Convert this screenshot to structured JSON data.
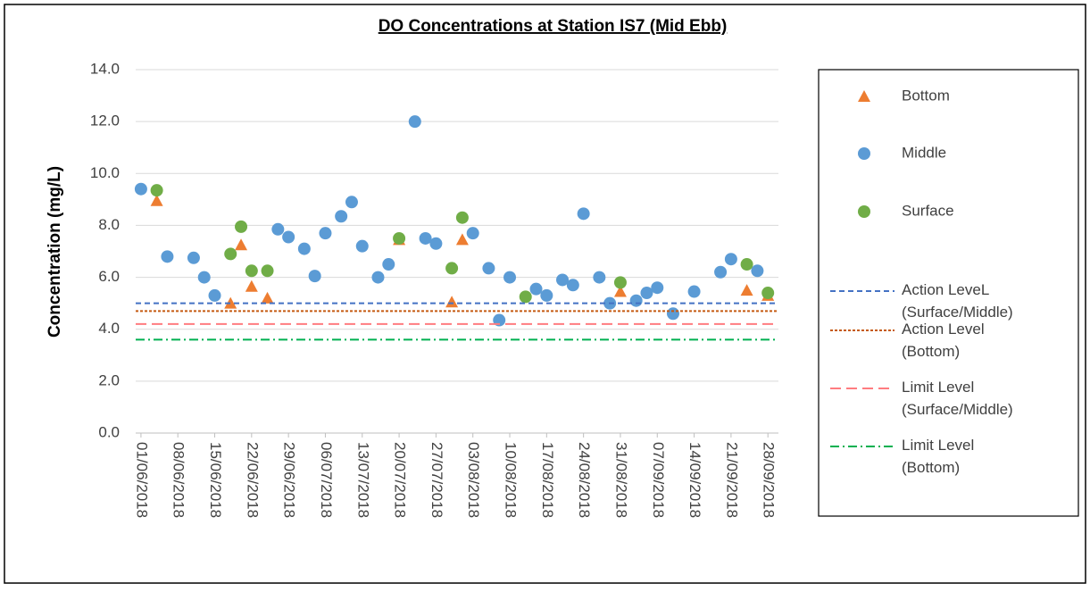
{
  "chart_data": {
    "type": "scatter",
    "title": "DO Concentrations at Station IS7 (Mid Ebb)",
    "y_label": "Concentration (mg/L)",
    "xlim": [
      "31/05/2018",
      "30/09/2018"
    ],
    "xticks": [
      "01/06/2018",
      "08/06/2018",
      "15/06/2018",
      "22/06/2018",
      "29/06/2018",
      "06/07/2018",
      "13/07/2018",
      "20/07/2018",
      "27/07/2018",
      "03/08/2018",
      "10/08/2018",
      "17/08/2018",
      "24/08/2018",
      "31/08/2018",
      "07/09/2018",
      "14/09/2018",
      "21/09/2018",
      "28/09/2018"
    ],
    "ylim": [
      0,
      14
    ],
    "yticks": [
      {
        "value": 0,
        "label": "0.0"
      },
      {
        "value": 2,
        "label": "2.0"
      },
      {
        "value": 4,
        "label": "4.0"
      },
      {
        "value": 6,
        "label": "6.0"
      },
      {
        "value": 8,
        "label": "8.0"
      },
      {
        "value": 10,
        "label": "10.0"
      },
      {
        "value": 12,
        "label": "12.0"
      },
      {
        "value": 14,
        "label": "14.0"
      }
    ],
    "grid": true,
    "legend": "right",
    "series": [
      {
        "name": "Bottom",
        "color": "#ed7d31",
        "marker": "triangle",
        "x": [
          "04/06/2018",
          "18/06/2018",
          "20/06/2018",
          "22/06/2018",
          "25/06/2018",
          "20/07/2018",
          "30/07/2018",
          "01/08/2018",
          "31/08/2018",
          "24/09/2018",
          "28/09/2018"
        ],
        "values": [
          8.95,
          5.0,
          7.25,
          5.65,
          5.2,
          7.45,
          5.05,
          7.45,
          5.45,
          5.5,
          5.3
        ]
      },
      {
        "name": "Middle",
        "color": "#5b9bd5",
        "marker": "circle",
        "x": [
          "01/06/2018",
          "06/06/2018",
          "11/06/2018",
          "13/06/2018",
          "15/06/2018",
          "27/06/2018",
          "29/06/2018",
          "02/07/2018",
          "04/07/2018",
          "06/07/2018",
          "09/07/2018",
          "11/07/2018",
          "13/07/2018",
          "16/07/2018",
          "18/07/2018",
          "23/07/2018",
          "25/07/2018",
          "27/07/2018",
          "03/08/2018",
          "06/08/2018",
          "08/08/2018",
          "10/08/2018",
          "15/08/2018",
          "17/08/2018",
          "20/08/2018",
          "22/08/2018",
          "24/08/2018",
          "27/08/2018",
          "29/08/2018",
          "03/09/2018",
          "05/09/2018",
          "07/09/2018",
          "10/09/2018",
          "14/09/2018",
          "19/09/2018",
          "21/09/2018",
          "26/09/2018"
        ],
        "values": [
          9.4,
          6.8,
          6.75,
          6.0,
          5.3,
          7.85,
          7.55,
          7.1,
          6.05,
          7.7,
          8.35,
          8.9,
          7.2,
          6.0,
          6.5,
          12.0,
          7.5,
          7.3,
          7.7,
          6.35,
          4.35,
          6.0,
          5.55,
          5.3,
          5.9,
          5.7,
          8.45,
          6.0,
          5.0,
          5.1,
          5.4,
          5.6,
          4.6,
          5.45,
          6.2,
          6.7,
          6.25
        ]
      },
      {
        "name": "Surface",
        "color": "#70ad47",
        "marker": "circle",
        "x": [
          "04/06/2018",
          "18/06/2018",
          "20/06/2018",
          "22/06/2018",
          "25/06/2018",
          "20/07/2018",
          "30/07/2018",
          "01/08/2018",
          "13/08/2018",
          "31/08/2018",
          "24/09/2018",
          "28/09/2018"
        ],
        "values": [
          9.35,
          6.9,
          7.95,
          6.25,
          6.25,
          7.5,
          6.35,
          8.3,
          5.25,
          5.8,
          6.5,
          5.4
        ]
      },
      {
        "name": "Action LeveL (Surface/Middle)",
        "color": "#4472c4",
        "dash": "6 4",
        "value": 5.0
      },
      {
        "name": "Action Level (Bottom)",
        "color": "#c55a11",
        "dash": "3 2",
        "value": 4.7
      },
      {
        "name": "Limit Level (Surface/Middle)",
        "color": "#ff7c80",
        "dash": "12 6",
        "value": 4.2
      },
      {
        "name": "Limit Level (Bottom)",
        "color": "#00b050",
        "dash": "10 4 2 4",
        "value": 3.6
      }
    ]
  }
}
